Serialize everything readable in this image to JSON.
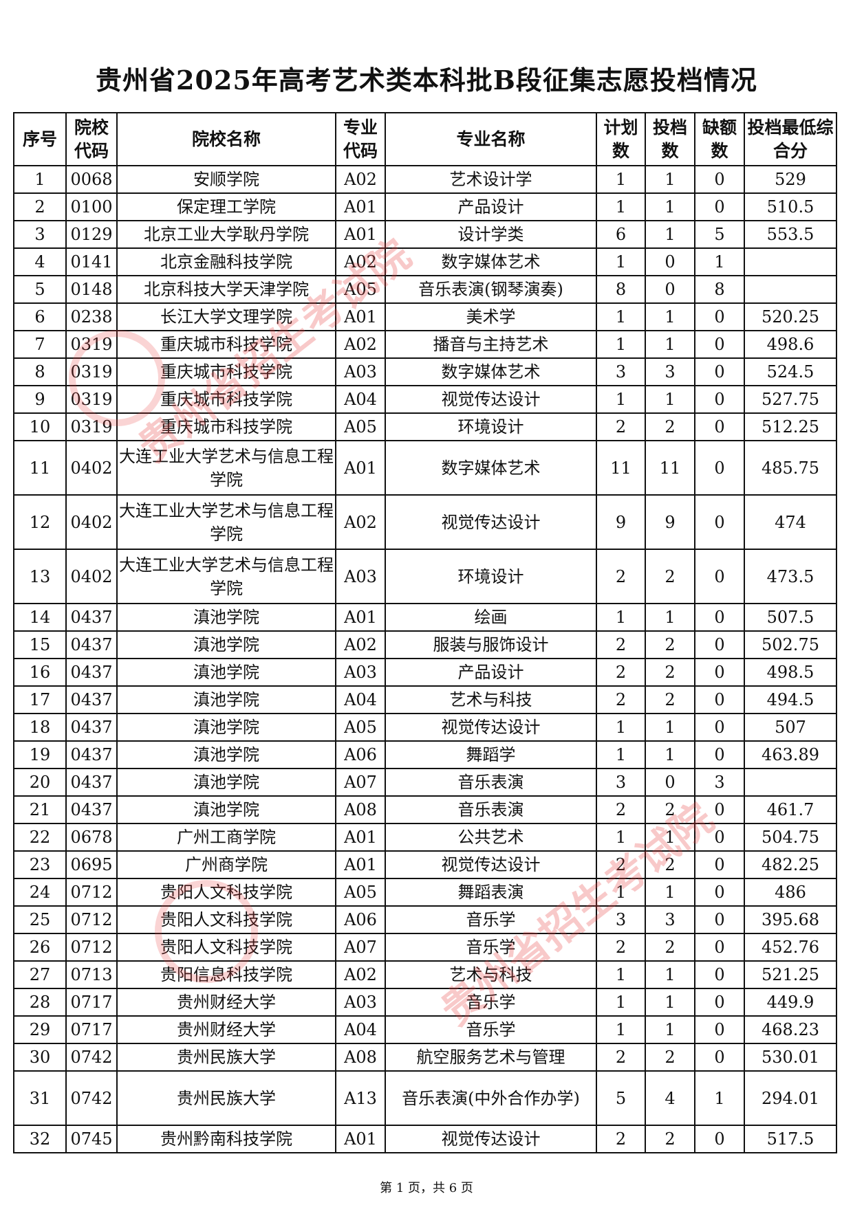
{
  "title": "贵州省2025年高考艺术类本科批B段征集志愿投档情况",
  "watermark": "贵州省招生考试院",
  "watermark_color": "#e63c3c",
  "headers": [
    "序号",
    "院校代码",
    "院校名称",
    "专业代码",
    "专业名称",
    "计划数",
    "投档数",
    "缺额数",
    "投档最低综合分"
  ],
  "rows": [
    [
      "1",
      "0068",
      "安顺学院",
      "A02",
      "艺术设计学",
      "1",
      "1",
      "0",
      "529"
    ],
    [
      "2",
      "0100",
      "保定理工学院",
      "A01",
      "产品设计",
      "1",
      "1",
      "0",
      "510.5"
    ],
    [
      "3",
      "0129",
      "北京工业大学耿丹学院",
      "A01",
      "设计学类",
      "6",
      "1",
      "5",
      "553.5"
    ],
    [
      "4",
      "0141",
      "北京金融科技学院",
      "A02",
      "数字媒体艺术",
      "1",
      "0",
      "1",
      ""
    ],
    [
      "5",
      "0148",
      "北京科技大学天津学院",
      "A05",
      "音乐表演(钢琴演奏)",
      "8",
      "0",
      "8",
      ""
    ],
    [
      "6",
      "0238",
      "长江大学文理学院",
      "A01",
      "美术学",
      "1",
      "1",
      "0",
      "520.25"
    ],
    [
      "7",
      "0319",
      "重庆城市科技学院",
      "A02",
      "播音与主持艺术",
      "1",
      "1",
      "0",
      "498.6"
    ],
    [
      "8",
      "0319",
      "重庆城市科技学院",
      "A03",
      "数字媒体艺术",
      "3",
      "3",
      "0",
      "524.5"
    ],
    [
      "9",
      "0319",
      "重庆城市科技学院",
      "A04",
      "视觉传达设计",
      "1",
      "1",
      "0",
      "527.75"
    ],
    [
      "10",
      "0319",
      "重庆城市科技学院",
      "A05",
      "环境设计",
      "2",
      "2",
      "0",
      "512.25"
    ],
    [
      "11",
      "0402",
      "大连工业大学艺术与信息工程学院",
      "A01",
      "数字媒体艺术",
      "11",
      "11",
      "0",
      "485.75"
    ],
    [
      "12",
      "0402",
      "大连工业大学艺术与信息工程学院",
      "A02",
      "视觉传达设计",
      "9",
      "9",
      "0",
      "474"
    ],
    [
      "13",
      "0402",
      "大连工业大学艺术与信息工程学院",
      "A03",
      "环境设计",
      "2",
      "2",
      "0",
      "473.5"
    ],
    [
      "14",
      "0437",
      "滇池学院",
      "A01",
      "绘画",
      "1",
      "1",
      "0",
      "507.5"
    ],
    [
      "15",
      "0437",
      "滇池学院",
      "A02",
      "服装与服饰设计",
      "2",
      "2",
      "0",
      "502.75"
    ],
    [
      "16",
      "0437",
      "滇池学院",
      "A03",
      "产品设计",
      "2",
      "2",
      "0",
      "498.5"
    ],
    [
      "17",
      "0437",
      "滇池学院",
      "A04",
      "艺术与科技",
      "2",
      "2",
      "0",
      "494.5"
    ],
    [
      "18",
      "0437",
      "滇池学院",
      "A05",
      "视觉传达设计",
      "1",
      "1",
      "0",
      "507"
    ],
    [
      "19",
      "0437",
      "滇池学院",
      "A06",
      "舞蹈学",
      "1",
      "1",
      "0",
      "463.89"
    ],
    [
      "20",
      "0437",
      "滇池学院",
      "A07",
      "音乐表演",
      "3",
      "0",
      "3",
      ""
    ],
    [
      "21",
      "0437",
      "滇池学院",
      "A08",
      "音乐表演",
      "2",
      "2",
      "0",
      "461.7"
    ],
    [
      "22",
      "0678",
      "广州工商学院",
      "A01",
      "公共艺术",
      "1",
      "1",
      "0",
      "504.75"
    ],
    [
      "23",
      "0695",
      "广州商学院",
      "A01",
      "视觉传达设计",
      "2",
      "2",
      "0",
      "482.25"
    ],
    [
      "24",
      "0712",
      "贵阳人文科技学院",
      "A05",
      "舞蹈表演",
      "1",
      "1",
      "0",
      "486"
    ],
    [
      "25",
      "0712",
      "贵阳人文科技学院",
      "A06",
      "音乐学",
      "3",
      "3",
      "0",
      "395.68"
    ],
    [
      "26",
      "0712",
      "贵阳人文科技学院",
      "A07",
      "音乐学",
      "2",
      "2",
      "0",
      "452.76"
    ],
    [
      "27",
      "0713",
      "贵阳信息科技学院",
      "A02",
      "艺术与科技",
      "1",
      "1",
      "0",
      "521.25"
    ],
    [
      "28",
      "0717",
      "贵州财经大学",
      "A03",
      "音乐学",
      "1",
      "1",
      "0",
      "449.9"
    ],
    [
      "29",
      "0717",
      "贵州财经大学",
      "A04",
      "音乐学",
      "1",
      "1",
      "0",
      "468.23"
    ],
    [
      "30",
      "0742",
      "贵州民族大学",
      "A08",
      "航空服务艺术与管理",
      "2",
      "2",
      "0",
      "530.01"
    ],
    [
      "31",
      "0742",
      "贵州民族大学",
      "A13",
      "音乐表演(中外合作办学)",
      "5",
      "4",
      "1",
      "294.01"
    ],
    [
      "32",
      "0745",
      "贵州黔南科技学院",
      "A01",
      "视觉传达设计",
      "2",
      "2",
      "0",
      "517.5"
    ]
  ],
  "footer": "第 1 页，共 6 页"
}
